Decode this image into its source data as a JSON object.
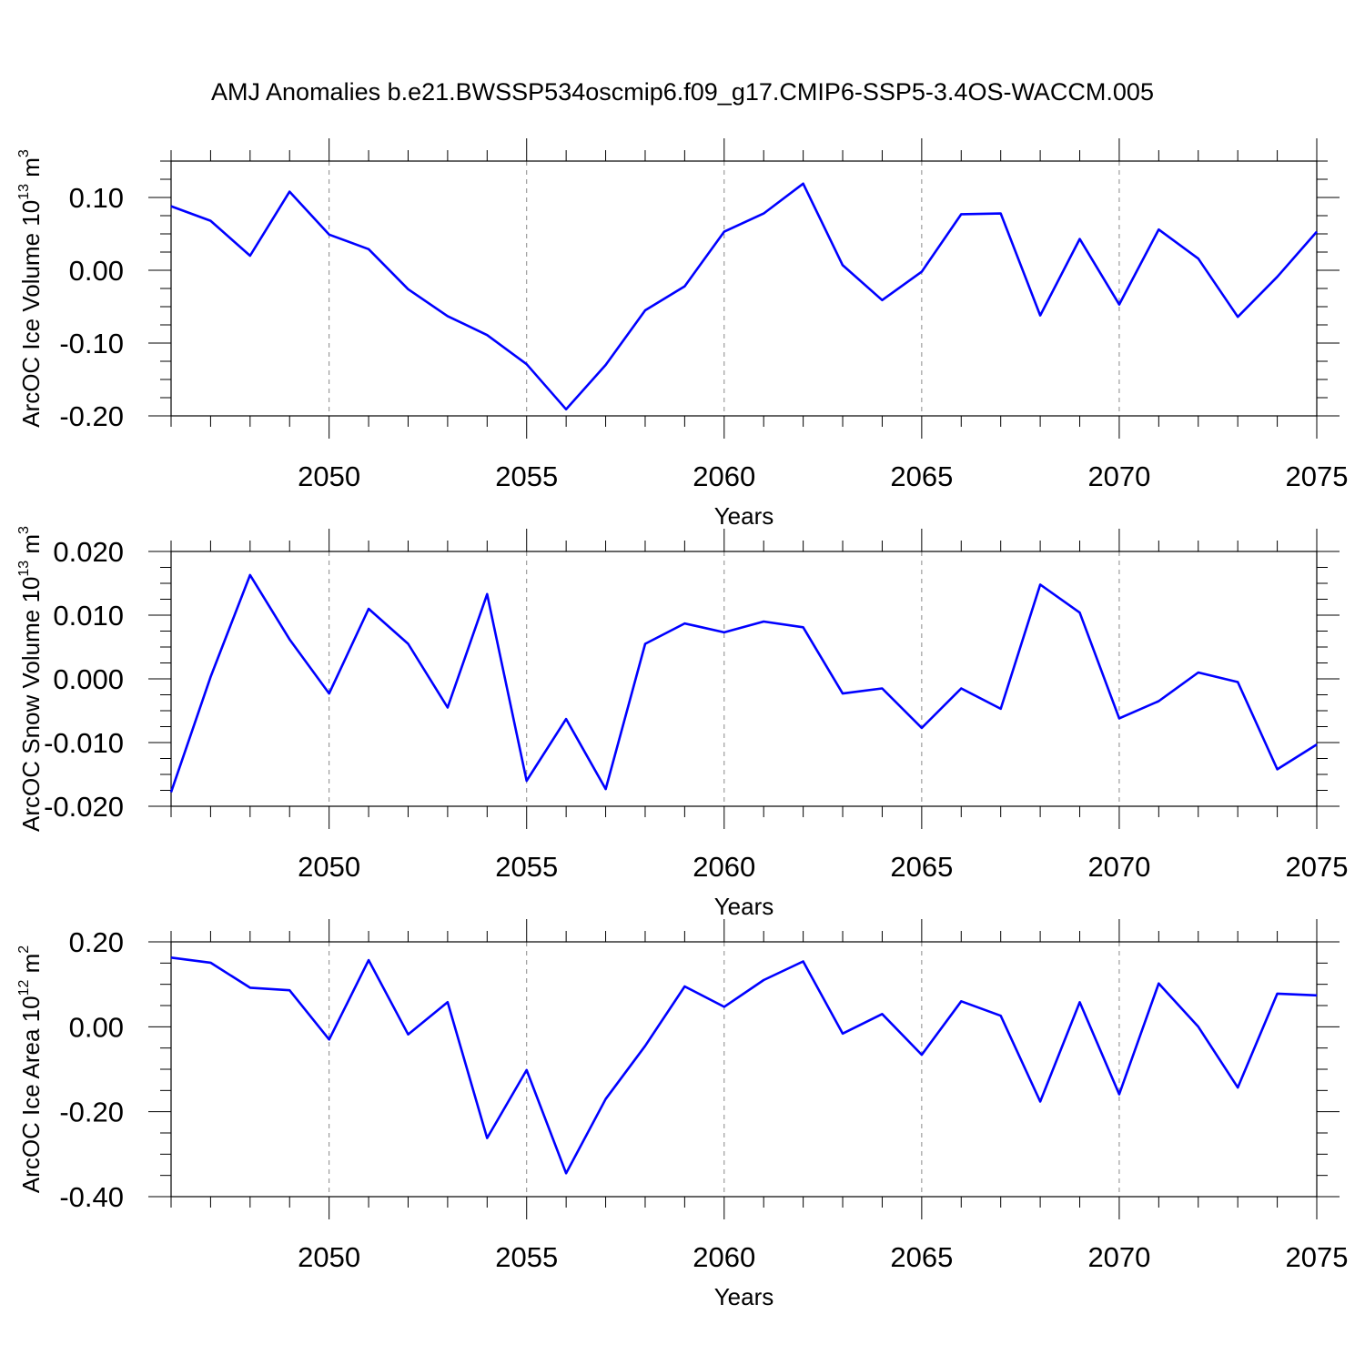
{
  "title": "AMJ Anomalies b.e21.BWSSP534oscmip6.f09_g17.CMIP6-SSP5-3.4OS-WACCM.005",
  "line_color": "#0000ff",
  "chart_data": [
    {
      "type": "line",
      "xlabel": "Years",
      "ylabel": {
        "main": "ArcOC Ice Volume 10",
        "sup": "13",
        "unit": " m",
        "unit_sup": "3"
      },
      "xlim": [
        2046,
        2075
      ],
      "ylim": [
        -0.2,
        0.15
      ],
      "xticks": [
        2050,
        2055,
        2060,
        2065,
        2070,
        2075
      ],
      "yticks": [
        -0.2,
        -0.1,
        0.0,
        0.1
      ],
      "ytick_labels": [
        "-0.20",
        "-0.10",
        "0.00",
        "0.10"
      ],
      "grid": "dashed vertical at major x ticks",
      "x": [
        2046,
        2047,
        2048,
        2049,
        2050,
        2051,
        2052,
        2053,
        2054,
        2055,
        2056,
        2057,
        2058,
        2059,
        2060,
        2061,
        2062,
        2063,
        2064,
        2065,
        2066,
        2067,
        2068,
        2069,
        2070,
        2071,
        2072,
        2073,
        2074,
        2075
      ],
      "y": [
        0.088,
        0.068,
        0.02,
        0.108,
        0.049,
        0.029,
        -0.026,
        -0.063,
        -0.089,
        -0.129,
        -0.191,
        -0.13,
        -0.055,
        -0.022,
        0.053,
        0.078,
        0.119,
        0.007,
        -0.041,
        -0.002,
        0.077,
        0.078,
        -0.062,
        0.043,
        -0.047,
        0.056,
        0.016,
        -0.064,
        -0.009,
        0.053
      ]
    },
    {
      "type": "line",
      "xlabel": "Years",
      "ylabel": {
        "main": "ArcOC Snow Volume 10",
        "sup": "13",
        "unit": " m",
        "unit_sup": "3"
      },
      "xlim": [
        2046,
        2075
      ],
      "ylim": [
        -0.02,
        0.02
      ],
      "xticks": [
        2050,
        2055,
        2060,
        2065,
        2070,
        2075
      ],
      "yticks": [
        -0.02,
        -0.01,
        0.0,
        0.01,
        0.02
      ],
      "ytick_labels": [
        "-0.020",
        "-0.010",
        "0.000",
        "0.010",
        "0.020"
      ],
      "grid": "dashed vertical at major x ticks",
      "x": [
        2046,
        2047,
        2048,
        2049,
        2050,
        2051,
        2052,
        2053,
        2054,
        2055,
        2056,
        2057,
        2058,
        2059,
        2060,
        2061,
        2062,
        2063,
        2064,
        2065,
        2066,
        2067,
        2068,
        2069,
        2070,
        2071,
        2072,
        2073,
        2074,
        2075
      ],
      "y": [
        -0.0178,
        0.0003,
        0.0163,
        0.0062,
        -0.0023,
        0.011,
        0.0055,
        -0.0045,
        0.0133,
        -0.016,
        -0.0063,
        -0.0173,
        0.0055,
        0.0087,
        0.0073,
        0.009,
        0.0081,
        -0.0023,
        -0.0015,
        -0.0077,
        -0.0015,
        -0.0047,
        0.0148,
        0.0104,
        -0.0062,
        -0.0035,
        0.001,
        -0.0005,
        -0.0142,
        -0.0103
      ]
    },
    {
      "type": "line",
      "xlabel": "Years",
      "ylabel": {
        "main": "ArcOC Ice Area 10",
        "sup": "12",
        "unit": " m",
        "unit_sup": "2"
      },
      "xlim": [
        2046,
        2075
      ],
      "ylim": [
        -0.4,
        0.2
      ],
      "xticks": [
        2050,
        2055,
        2060,
        2065,
        2070,
        2075
      ],
      "yticks": [
        -0.4,
        -0.2,
        0.0,
        0.2
      ],
      "ytick_labels": [
        "-0.40",
        "-0.20",
        "0.00",
        "0.20"
      ],
      "grid": "dashed vertical at major x ticks",
      "x": [
        2046,
        2047,
        2048,
        2049,
        2050,
        2051,
        2052,
        2053,
        2054,
        2055,
        2056,
        2057,
        2058,
        2059,
        2060,
        2061,
        2062,
        2063,
        2064,
        2065,
        2066,
        2067,
        2068,
        2069,
        2070,
        2071,
        2072,
        2073,
        2074,
        2075
      ],
      "y": [
        0.163,
        0.151,
        0.092,
        0.086,
        -0.03,
        0.157,
        -0.018,
        0.058,
        -0.262,
        -0.102,
        -0.345,
        -0.17,
        -0.045,
        0.095,
        0.047,
        0.11,
        0.154,
        -0.016,
        0.03,
        -0.066,
        0.06,
        0.026,
        -0.176,
        0.058,
        -0.159,
        0.102,
        0.0,
        -0.143,
        0.078,
        0.074
      ]
    }
  ]
}
